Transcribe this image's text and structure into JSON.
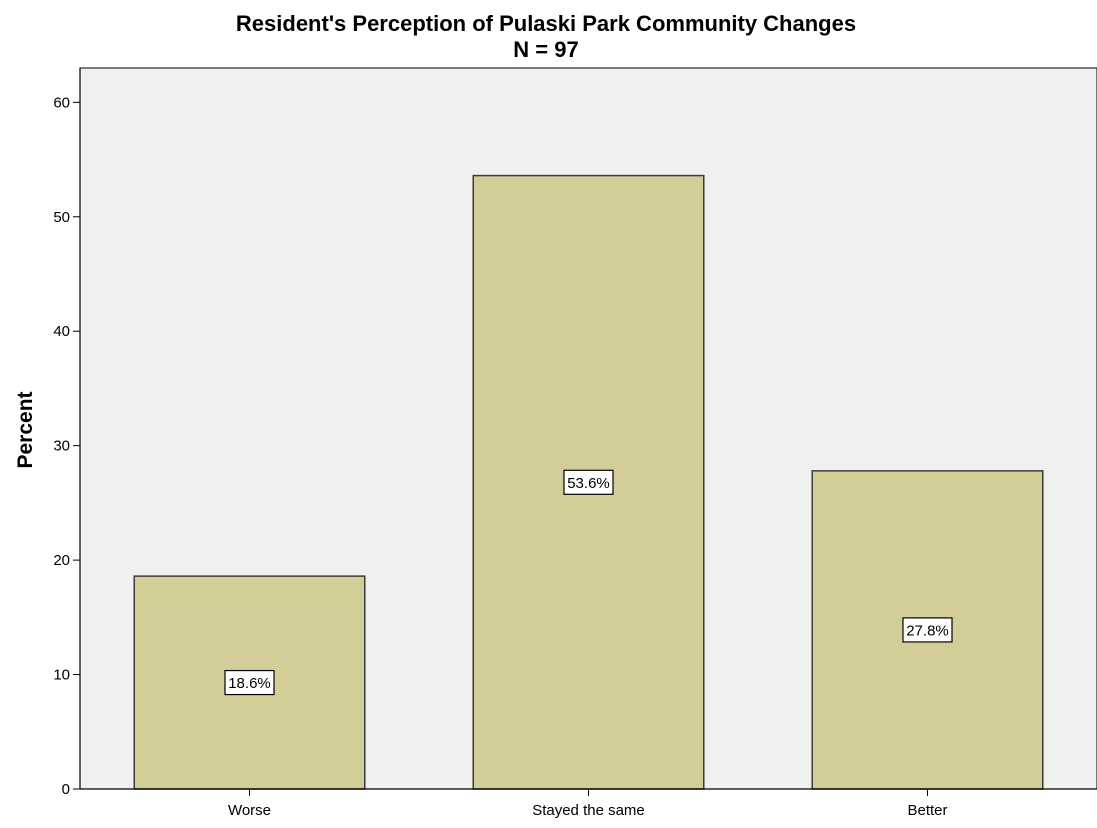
{
  "chart_data": {
    "type": "bar",
    "title": "Resident's Perception of Pulaski Park Community Changes",
    "subtitle": "N = 97",
    "xlabel": "",
    "ylabel": "Percent",
    "categories": [
      "Worse",
      "Stayed the same",
      "Better"
    ],
    "values": [
      18.6,
      53.6,
      27.8
    ],
    "data_labels": [
      "18.6%",
      "53.6%",
      "27.8%"
    ],
    "ylim": [
      0,
      63
    ],
    "yticks": [
      0,
      10,
      20,
      30,
      40,
      50,
      60
    ],
    "ytick_labels": [
      "0",
      "10",
      "20",
      "30",
      "40",
      "50",
      "60"
    ],
    "grid": false,
    "legend": "none",
    "colors": {
      "bar_fill": "#d3ce98",
      "bar_stroke": "#3c3c3c",
      "plot_background": "#f0f0f0",
      "axis": "#000000",
      "label_box_fill": "#ffffff"
    }
  }
}
